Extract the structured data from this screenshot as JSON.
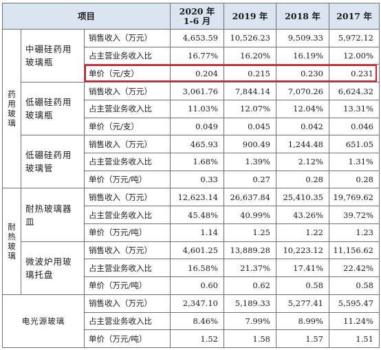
{
  "headers": {
    "item": "项目",
    "years": [
      "2020 年\n1-6 月",
      "2019 年",
      "2018 年",
      "2017 年"
    ]
  },
  "groups": [
    {
      "category": "药用玻璃",
      "products": [
        {
          "name": "中硼硅药用玻璃瓶",
          "rows": [
            {
              "metric": "销售收入（万元）",
              "values": [
                "4,653.59",
                "10,526.23",
                "9,509.33",
                "5,972.12"
              ]
            },
            {
              "metric": "占主营业务收入比",
              "values": [
                "16.77%",
                "16.20%",
                "16.19%",
                "12.00%"
              ]
            },
            {
              "metric": "单价（元/支）",
              "values": [
                "0.204",
                "0.215",
                "0.230",
                "0.231"
              ]
            }
          ]
        },
        {
          "name": "低硼硅药用玻璃瓶",
          "rows": [
            {
              "metric": "销售收入（万元）",
              "values": [
                "3,061.76",
                "7,844.14",
                "7,070.26",
                "6,624.32"
              ]
            },
            {
              "metric": "占主营业务收入比",
              "values": [
                "11.03%",
                "12.07%",
                "12.04%",
                "13.31%"
              ]
            },
            {
              "metric": "单价（元/支）",
              "values": [
                "0.049",
                "0.045",
                "0.042",
                "0.046"
              ]
            }
          ]
        },
        {
          "name": "低硼硅药用玻璃管",
          "rows": [
            {
              "metric": "销售收入（万元）",
              "values": [
                "465.93",
                "900.49",
                "1,244.48",
                "651.05"
              ]
            },
            {
              "metric": "占主营业务收入比",
              "values": [
                "1.68%",
                "1.39%",
                "2.12%",
                "1.31%"
              ]
            },
            {
              "metric": "单价（万元/吨）",
              "values": [
                "0.33",
                "0.27",
                "0.28",
                "0.28"
              ]
            }
          ]
        }
      ]
    },
    {
      "category": "耐热玻璃",
      "products": [
        {
          "name": "耐热玻璃器皿",
          "rows": [
            {
              "metric": "销售收入（万元）",
              "values": [
                "12,623.14",
                "26,637.84",
                "25,410.35",
                "19,769.62"
              ]
            },
            {
              "metric": "占主营业务收入比",
              "values": [
                "45.48%",
                "40.99%",
                "43.26%",
                "39.72%"
              ]
            },
            {
              "metric": "单价（万元/吨）",
              "values": [
                "1.14",
                "1.25",
                "1.22",
                "1.23"
              ]
            }
          ]
        },
        {
          "name": "微波炉用玻璃托盘",
          "rows": [
            {
              "metric": "销售收入（万元）",
              "values": [
                "4,601.25",
                "13,889.28",
                "10,223.12",
                "11,156.62"
              ]
            },
            {
              "metric": "占主营业务收入比",
              "values": [
                "16.58%",
                "21.37%",
                "17.41%",
                "22.42%"
              ]
            },
            {
              "metric": "单价（万元/吨）",
              "values": [
                "0.60",
                "0.62",
                "0.58",
                "0.58"
              ]
            }
          ]
        }
      ]
    },
    {
      "category": "电光源玻璃",
      "products": [
        {
          "name": "",
          "rows": [
            {
              "metric": "销售收入（万元）",
              "values": [
                "2,347.10",
                "5,189.33",
                "5,277.41",
                "5,595.47"
              ]
            },
            {
              "metric": "占主营业务收入比",
              "values": [
                "8.46%",
                "7.99%",
                "8.99%",
                "11.24%"
              ]
            },
            {
              "metric": "单价（万元/吨）",
              "values": [
                "1.52",
                "1.58",
                "1.57",
                "1.51"
              ]
            }
          ]
        }
      ]
    }
  ],
  "highlight": {
    "color": "#e0142a",
    "group": 0,
    "product": 0,
    "row": 2
  }
}
